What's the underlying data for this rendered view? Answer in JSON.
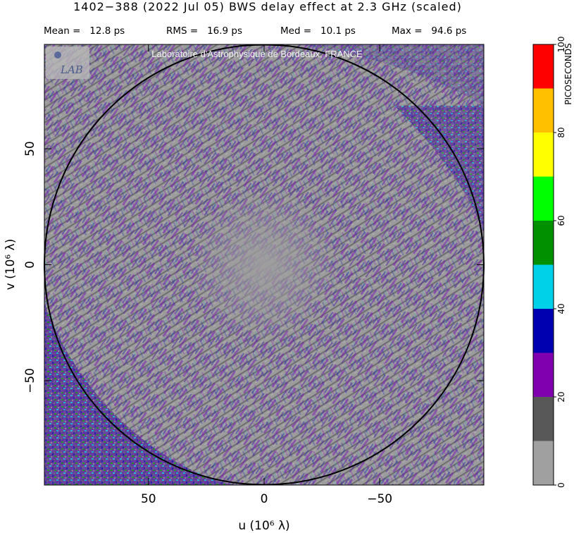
{
  "header": {
    "title": "1402−388  (2022 Jul 05)   BWS delay effect at  2.3 GHz (scaled)",
    "stats": [
      {
        "label": "Mean =",
        "value": "12.8 ps"
      },
      {
        "label": "RMS =",
        "value": "16.9 ps"
      },
      {
        "label": "Med =",
        "value": "10.1 ps"
      },
      {
        "label": "Max =",
        "value": "94.6 ps"
      }
    ]
  },
  "watermark": {
    "text": "Laboratoire d'Astrophysique de Bordeaux, FRANCE",
    "logo_text": "LAB"
  },
  "chart_data": {
    "type": "heatmap",
    "title": "BWS delay effect at 2.3 GHz (scaled)",
    "xlabel": "u  (10⁶ λ)",
    "ylabel": "v  (10⁶ λ)",
    "xlim": [
      95,
      -95
    ],
    "ylim": [
      -95,
      95
    ],
    "x_reversed": true,
    "x_ticks": [
      {
        "value": 50,
        "label": "50"
      },
      {
        "value": 0,
        "label": "0"
      },
      {
        "value": -50,
        "label": "−50"
      }
    ],
    "y_ticks": [
      {
        "value": 50,
        "label": "50"
      },
      {
        "value": 0,
        "label": "0"
      },
      {
        "value": -50,
        "label": "−50"
      }
    ],
    "circle_radius": 95,
    "colorbar": {
      "label": "PICOSECONDS",
      "min": 0,
      "max": 100,
      "tick_values": [
        0,
        20,
        40,
        60,
        80,
        100
      ],
      "tick_labels": [
        "0",
        "20",
        "40",
        "60",
        "80",
        "100"
      ],
      "bins": [
        {
          "from": 0,
          "to": 10,
          "color": "#a0a0a0"
        },
        {
          "from": 10,
          "to": 20,
          "color": "#585858"
        },
        {
          "from": 20,
          "to": 30,
          "color": "#8000b0"
        },
        {
          "from": 30,
          "to": 40,
          "color": "#0000b0"
        },
        {
          "from": 40,
          "to": 50,
          "color": "#00d0e8"
        },
        {
          "from": 50,
          "to": 60,
          "color": "#009000"
        },
        {
          "from": 60,
          "to": 70,
          "color": "#00ff00"
        },
        {
          "from": 70,
          "to": 80,
          "color": "#ffff00"
        },
        {
          "from": 80,
          "to": 90,
          "color": "#ffc000"
        },
        {
          "from": 90,
          "to": 100,
          "color": "#ff0000"
        }
      ]
    }
  }
}
